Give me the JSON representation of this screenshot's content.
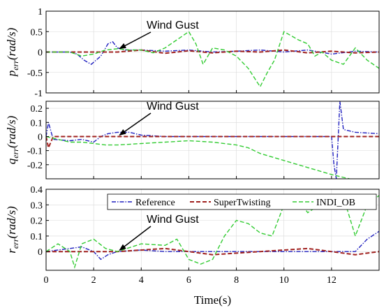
{
  "chart_data": [
    {
      "type": "line",
      "ylabel": "p_err (rad/s)",
      "ylabel_main": "p",
      "ylabel_sub": "err",
      "ylabel_unit": "(rad/s)",
      "xlim": [
        0,
        14
      ],
      "ylim": [
        -1,
        1
      ],
      "yticks": [
        -1,
        -0.5,
        0,
        0.5,
        1
      ],
      "ytick_labels": [
        "-1",
        "-0.5",
        "0",
        "0.5",
        "1"
      ],
      "xtick_labels": [],
      "grid": true,
      "annotation": {
        "text": "Wind Gust",
        "target_x": 3,
        "target_y": 0.05
      },
      "series": [
        {
          "name": "Reference",
          "color": "#1f1fbf",
          "dash": "dashdot",
          "x": [
            0,
            0.5,
            1,
            1.3,
            1.6,
            1.9,
            2.3,
            2.6,
            2.8,
            3.0,
            3.3,
            4,
            5,
            6,
            7,
            8,
            9,
            10,
            11,
            12,
            13,
            14
          ],
          "y": [
            0,
            0,
            0,
            -0.05,
            -0.2,
            -0.3,
            -0.1,
            0.2,
            0.25,
            0.1,
            0.05,
            0.05,
            0.02,
            0.05,
            0.0,
            0.02,
            0.05,
            0.0,
            0.05,
            -0.05,
            0.02,
            0.0
          ]
        },
        {
          "name": "SuperTwisting",
          "color": "#a0201e",
          "dash": "dashed",
          "x": [
            0,
            2,
            3,
            4,
            5,
            6,
            7,
            8,
            9,
            10,
            11,
            12,
            13,
            14
          ],
          "y": [
            0,
            0,
            0,
            0.05,
            -0.03,
            0.03,
            -0.02,
            0.02,
            0.0,
            0.05,
            -0.02,
            0.02,
            -0.02,
            0.0
          ]
        },
        {
          "name": "INDI_OB",
          "color": "#33cc33",
          "dash": "dashed",
          "x": [
            0,
            1,
            1.5,
            2,
            2.5,
            3,
            3.5,
            4,
            4.5,
            5,
            5.5,
            6,
            6.3,
            6.6,
            7,
            7.5,
            8,
            8.5,
            9,
            9.3,
            9.6,
            10,
            10.3,
            10.6,
            11,
            11.3,
            11.6,
            12,
            12.5,
            13,
            13.5,
            14
          ],
          "y": [
            0,
            0,
            -0.1,
            -0.05,
            0.05,
            0.08,
            0.05,
            0.05,
            -0.02,
            0.1,
            0.3,
            0.5,
            0.2,
            -0.3,
            0.1,
            0.05,
            -0.1,
            -0.4,
            -0.85,
            -0.5,
            -0.2,
            0.5,
            0.4,
            0.3,
            0.2,
            -0.1,
            0.0,
            -0.2,
            -0.3,
            0.1,
            -0.2,
            -0.4
          ]
        }
      ]
    },
    {
      "type": "line",
      "ylabel": "q_err (rad/s)",
      "ylabel_main": "q",
      "ylabel_sub": "err",
      "ylabel_unit": "(rad/s)",
      "xlim": [
        0,
        14
      ],
      "ylim": [
        -0.3,
        0.25
      ],
      "yticks": [
        -0.2,
        -0.1,
        0,
        0.1,
        0.2
      ],
      "ytick_labels": [
        "-0.2",
        "-0.1",
        "0",
        "0.1",
        "0.2"
      ],
      "xtick_labels": [],
      "grid": true,
      "annotation": {
        "text": "Wind Gust",
        "target_x": 3,
        "target_y": 0.0
      },
      "series": [
        {
          "name": "Reference",
          "color": "#1f1fbf",
          "dash": "dashdot",
          "x": [
            0,
            0.1,
            0.3,
            1,
            1.5,
            2,
            2.3,
            2.6,
            3,
            3.5,
            4,
            5,
            6,
            7,
            8,
            9,
            10,
            11,
            12,
            12.1,
            12.2,
            12.35,
            12.5,
            13,
            14
          ],
          "y": [
            0,
            0.1,
            -0.02,
            -0.03,
            -0.02,
            -0.04,
            0.0,
            0.02,
            0.03,
            0.03,
            0.01,
            0.0,
            0.0,
            0.0,
            0.0,
            0.0,
            0.0,
            0.0,
            0.0,
            -0.2,
            -0.3,
            0.25,
            0.05,
            0.03,
            0.02
          ]
        },
        {
          "name": "SuperTwisting",
          "color": "#a0201e",
          "dash": "dashed",
          "x": [
            0,
            0.1,
            0.3,
            1,
            3,
            6,
            10,
            14
          ],
          "y": [
            0,
            -0.08,
            0,
            0,
            0,
            0,
            0,
            0
          ]
        },
        {
          "name": "INDI_OB",
          "color": "#33cc33",
          "dash": "dashed",
          "x": [
            0,
            0.5,
            1,
            1.5,
            2,
            2.5,
            3,
            4,
            5,
            6,
            7,
            8,
            8.5,
            9,
            10,
            11,
            12,
            12.5,
            13,
            14
          ],
          "y": [
            0,
            -0.02,
            -0.04,
            -0.04,
            -0.05,
            -0.06,
            -0.06,
            -0.05,
            -0.04,
            -0.03,
            -0.04,
            -0.06,
            -0.08,
            -0.12,
            -0.17,
            -0.22,
            -0.27,
            -0.29,
            -0.31,
            -0.32
          ]
        }
      ]
    },
    {
      "type": "line",
      "ylabel": "r_err (rad/s)",
      "ylabel_main": "r",
      "ylabel_sub": "err",
      "ylabel_unit": "(rad/s)",
      "xlim": [
        0,
        14
      ],
      "ylim": [
        -0.12,
        0.4
      ],
      "yticks": [
        0,
        0.1,
        0.2,
        0.3,
        0.4
      ],
      "ytick_labels": [
        "0",
        "0.1",
        "0.2",
        "0.3",
        "0.4"
      ],
      "xticks": [
        0,
        2,
        4,
        6,
        8,
        10,
        12
      ],
      "xtick_labels": [
        "0",
        "2",
        "4",
        "6",
        "8",
        "10",
        "12"
      ],
      "xlabel": "Time(s)",
      "grid": true,
      "legend": "top-right",
      "annotation": {
        "text": "Wind Gust",
        "target_x": 3,
        "target_y": 0.0
      },
      "series": [
        {
          "name": "Reference",
          "color": "#1f1fbf",
          "dash": "dashdot",
          "x": [
            0,
            1,
            1.5,
            2,
            2.3,
            2.6,
            3,
            4,
            5,
            6,
            7,
            8,
            9,
            10,
            11,
            12,
            13,
            13.5,
            14
          ],
          "y": [
            0,
            0.02,
            0.03,
            0.0,
            -0.05,
            -0.02,
            0.0,
            0.01,
            0.0,
            0.0,
            0.0,
            0.0,
            0.0,
            0.0,
            0.0,
            0.0,
            0.0,
            0.08,
            0.13
          ]
        },
        {
          "name": "SuperTwisting",
          "color": "#a0201e",
          "dash": "dashed",
          "x": [
            0,
            3,
            5,
            7,
            9,
            11,
            13,
            14
          ],
          "y": [
            0,
            0,
            0.02,
            -0.02,
            0.0,
            0.02,
            -0.02,
            0.0
          ]
        },
        {
          "name": "INDI_OB",
          "color": "#33cc33",
          "dash": "dashed",
          "x": [
            0,
            0.5,
            1,
            1.2,
            1.5,
            2,
            2.5,
            3,
            4,
            5,
            5.5,
            6,
            6.5,
            7,
            7.5,
            8,
            8.5,
            9,
            9.5,
            10,
            10.5,
            11,
            11.5,
            12,
            12.5,
            13,
            13.5,
            14
          ],
          "y": [
            0,
            0.05,
            0.0,
            -0.1,
            0.05,
            0.08,
            0.02,
            0.0,
            0.05,
            0.04,
            0.08,
            -0.05,
            -0.08,
            -0.05,
            0.1,
            0.2,
            0.18,
            0.12,
            0.1,
            0.3,
            0.35,
            0.25,
            0.3,
            0.28,
            0.35,
            0.1,
            0.3,
            0.36
          ]
        }
      ]
    }
  ],
  "legend": {
    "entries": [
      "Reference",
      "SuperTwisting",
      "INDI_OB"
    ]
  }
}
